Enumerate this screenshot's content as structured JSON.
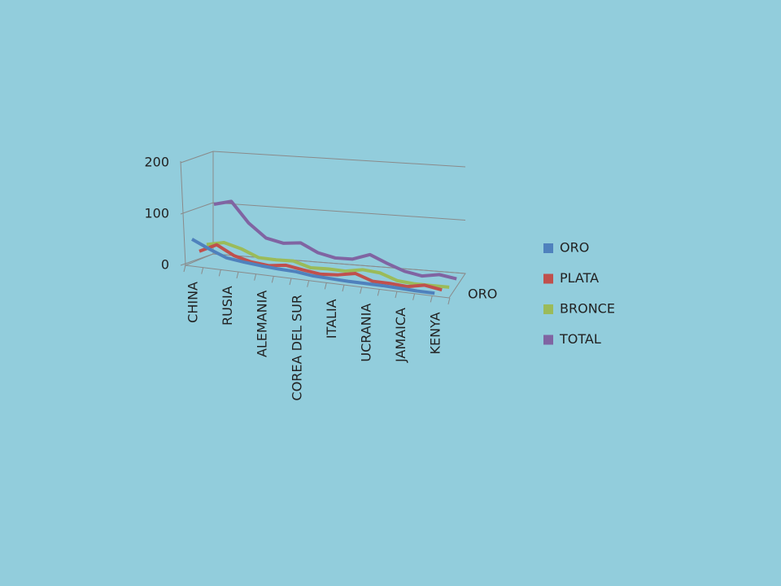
{
  "chart_data": {
    "type": "line3d",
    "categories": [
      "CHINA",
      null,
      "RUSIA",
      null,
      "ALEMANIA",
      null,
      "COREA DEL SUR",
      null,
      "ITALIA",
      null,
      "UCRANIA",
      null,
      "JAMAICA",
      null,
      "KENYA"
    ],
    "series": [
      {
        "name": "ORO",
        "color": "#4f81bd",
        "values": [
          51,
          36,
          23,
          19,
          16,
          14,
          13,
          9,
          8,
          7,
          7,
          7,
          6,
          5,
          5
        ]
      },
      {
        "name": "PLATA",
        "color": "#c0504d",
        "values": [
          21,
          38,
          21,
          13,
          10,
          15,
          10,
          6,
          9,
          16,
          5,
          5,
          3,
          10,
          5
        ]
      },
      {
        "name": "BRONCE",
        "color": "#9bbb59",
        "values": [
          28,
          36,
          28,
          15,
          15,
          17,
          8,
          10,
          10,
          17,
          15,
          4,
          2,
          3,
          4
        ]
      },
      {
        "name": "TOTAL",
        "color": "#8064a2",
        "values": [
          100,
          110,
          72,
          47,
          41,
          46,
          31,
          25,
          27,
          40,
          27,
          16,
          11,
          18,
          14
        ]
      }
    ],
    "series_axis_labels": [
      "ORO"
    ],
    "ylim": [
      0,
      200
    ],
    "yticks": [
      0,
      100,
      200
    ]
  }
}
